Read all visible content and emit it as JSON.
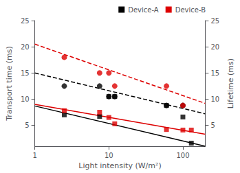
{
  "chart_data": {
    "type": "line",
    "xlabel": "Light intensity (W/m²)",
    "ylabel": "Transport time (ms)",
    "y2label": "Lifetime (ms)",
    "log": "x",
    "xlim": [
      1,
      200
    ],
    "xticks": [
      1,
      10,
      100
    ],
    "ylim": [
      1,
      25
    ],
    "yticks": [
      5,
      10,
      15,
      20,
      25
    ],
    "y2lim": [
      1,
      25
    ],
    "y2ticks": [
      5,
      10,
      15,
      20,
      25
    ],
    "grid": false,
    "legend": "upper right",
    "series": [
      {
        "name": "Device-A",
        "color": "#000000",
        "type": "line",
        "line_style": "solid",
        "x": [
          1.0,
          200.0
        ],
        "values": [
          8.7,
          1.0
        ]
      },
      {
        "name": "Device-B",
        "color": "#dd0000",
        "type": "line",
        "line_style": "solid",
        "x": [
          1.0,
          200.0
        ],
        "values": [
          9.0,
          3.3
        ]
      },
      {
        "name": "Device-A",
        "color": "#000000",
        "type": "line",
        "line_style": "dashed",
        "axis": "y2",
        "x": [
          1.0,
          200.0
        ],
        "values": [
          15.0,
          7.2
        ]
      },
      {
        "name": "Device-B",
        "color": "#dd0000",
        "type": "line",
        "line_style": "dashed",
        "axis": "y2",
        "x": [
          1.0,
          200.0
        ],
        "values": [
          20.5,
          9.2
        ]
      },
      {
        "name": "Device-A",
        "color": "#000000",
        "type": "scatter",
        "marker": "square",
        "x": [
          2.5,
          7.5,
          10.0,
          12.0,
          60.0,
          100.0,
          130.0
        ],
        "values": [
          7.0,
          6.7,
          10.5,
          10.5,
          8.8,
          6.6,
          1.6
        ]
      },
      {
        "name": "Device-B",
        "color": "#dd0000",
        "type": "scatter",
        "marker": "square",
        "x": [
          2.5,
          7.5,
          10.0,
          12.0,
          60.0,
          100.0,
          130.0
        ],
        "values": [
          7.8,
          7.5,
          6.5,
          5.3,
          4.2,
          4.1,
          4.1
        ]
      },
      {
        "name": "Device-A",
        "color": "#000000",
        "type": "scatter",
        "marker": "circle",
        "axis": "y2",
        "x": [
          2.5,
          7.5,
          10.0,
          12.0,
          60.0,
          100.0
        ],
        "values": [
          12.5,
          12.5,
          10.5,
          10.5,
          8.8,
          8.8
        ]
      },
      {
        "name": "Device-B",
        "color": "#dd0000",
        "type": "scatter",
        "marker": "circle",
        "axis": "y2",
        "x": [
          2.5,
          7.5,
          10.0,
          12.0,
          60.0,
          100.0
        ],
        "values": [
          18.0,
          15.0,
          15.0,
          12.5,
          12.5,
          8.8
        ]
      }
    ]
  }
}
